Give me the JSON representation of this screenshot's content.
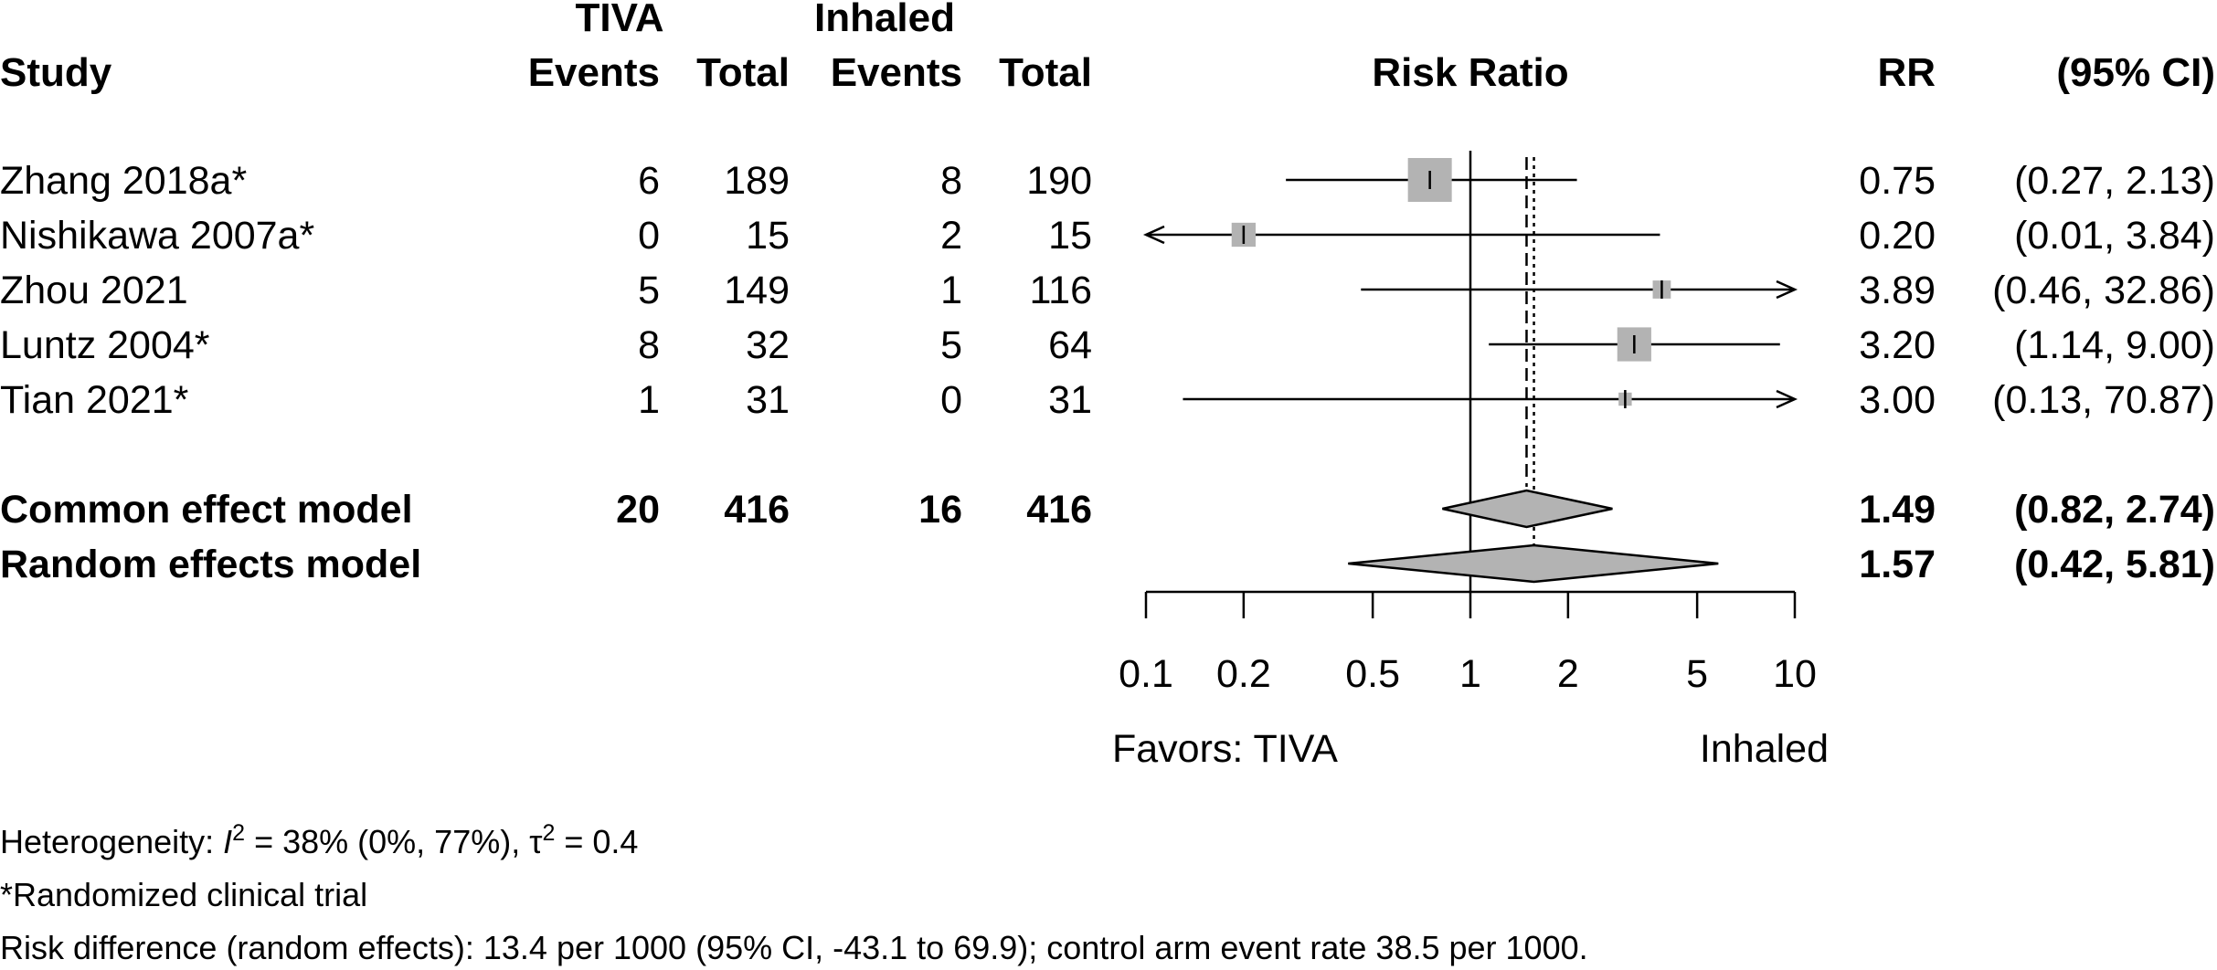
{
  "chart_data": {
    "type": "forest",
    "headers": {
      "study": "Study",
      "group1": "TIVA",
      "group2": "Inhaled",
      "events": "Events",
      "total": "Total",
      "plot": "Risk Ratio",
      "rr": "RR",
      "ci": "(95% CI)"
    },
    "studies": [
      {
        "name": "Zhang 2018a*",
        "e1": "6",
        "n1": "189",
        "e2": "8",
        "n2": "190",
        "rr": 0.75,
        "lo": 0.27,
        "hi": 2.13,
        "rr_text": "0.75",
        "ci_text": "(0.27,  2.13)",
        "weight": 1.0
      },
      {
        "name": "Nishikawa 2007a*",
        "e1": "0",
        "n1": "15",
        "e2": "2",
        "n2": "15",
        "rr": 0.2,
        "lo": 0.01,
        "hi": 3.84,
        "rr_text": "0.20",
        "ci_text": "(0.01,  3.84)",
        "weight": 0.3
      },
      {
        "name": "Zhou 2021",
        "e1": "5",
        "n1": "149",
        "e2": "1",
        "n2": "116",
        "rr": 3.89,
        "lo": 0.46,
        "hi": 32.86,
        "rr_text": "3.89",
        "ci_text": "(0.46, 32.86)",
        "weight": 0.17
      },
      {
        "name": "Luntz 2004*",
        "e1": "8",
        "n1": "32",
        "e2": "5",
        "n2": "64",
        "rr": 3.2,
        "lo": 1.14,
        "hi": 9.0,
        "rr_text": "3.20",
        "ci_text": "(1.14,  9.00)",
        "weight": 0.6
      },
      {
        "name": "Tian 2021*",
        "e1": "1",
        "n1": "31",
        "e2": "0",
        "n2": "31",
        "rr": 3.0,
        "lo": 0.13,
        "hi": 70.87,
        "rr_text": "3.00",
        "ci_text": "(0.13, 70.87)",
        "weight": 0.09
      }
    ],
    "models": [
      {
        "name": "Common effect model",
        "e1": "20",
        "n1": "416",
        "e2": "16",
        "n2": "416",
        "rr": 1.49,
        "lo": 0.82,
        "hi": 2.74,
        "rr_text": "1.49",
        "ci_text": "(0.82,  2.74)"
      },
      {
        "name": "Random effects model",
        "e1": "",
        "n1": "",
        "e2": "",
        "n2": "",
        "rr": 1.57,
        "lo": 0.42,
        "hi": 5.81,
        "rr_text": "1.57",
        "ci_text": "(0.42,  5.81)"
      }
    ],
    "x_scale": "log",
    "xlim": [
      0.1,
      10
    ],
    "x_ticks": [
      0.1,
      0.2,
      0.5,
      1,
      2,
      5,
      10
    ],
    "x_tick_labels": [
      "0.1",
      "0.2",
      "0.5",
      "1",
      "2",
      "5",
      "10"
    ],
    "favors_left": "Favors: TIVA",
    "favors_right": "Inhaled"
  },
  "footnotes": {
    "heterogeneity_prefix": "Heterogeneity: ",
    "i2_symbol": "I",
    "i2_sup": "2",
    "i2_value": " = 38% (0%, 77%), ",
    "tau_symbol": "τ",
    "tau_sup": "2",
    "tau_value": " = 0.4",
    "randomized": "*Randomized clinical trial",
    "risk_difference": "Risk difference (random effects): 13.4 per 1000 (95% CI, -43.1 to 69.9); control arm event rate 38.5 per 1000."
  },
  "colors": {
    "box": "#b3b3b3",
    "line": "#000000",
    "diamond": "#b3b3b3"
  }
}
